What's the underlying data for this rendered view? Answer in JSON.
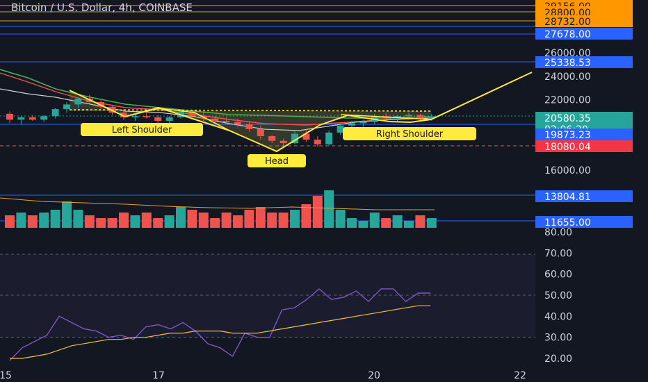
{
  "header": {
    "title": "Bitcoin / U.S. Dollar, 4h, COINBASE"
  },
  "colors": {
    "bg": "#131722",
    "up": "#26a69a",
    "down": "#ef5350",
    "pattern": "#ffeb3b",
    "axis_text": "#d1d4dc",
    "rsi": "#7e57c2",
    "rsi_ma": "#f0c040"
  },
  "chart_data": [
    {
      "type": "candlestick",
      "title": "Bitcoin / U.S. Dollar, 4h, COINBASE",
      "x_ticks": [
        "15",
        "17",
        "20",
        "22"
      ],
      "y_ticks": [
        16000,
        18000,
        20000,
        22000,
        24000,
        26000
      ],
      "ylim": [
        15000,
        30000
      ],
      "price_labels": [
        {
          "value": "29156.00",
          "kind": "level"
        },
        {
          "value": "28800.00",
          "kind": "level"
        },
        {
          "value": "28732.00",
          "kind": "level"
        },
        {
          "value": "27678.00",
          "kind": "blue"
        },
        {
          "value": "25338.53",
          "kind": "blue"
        },
        {
          "value": "20580.35",
          "kind": "last"
        },
        {
          "value": "02:06:20",
          "kind": "countdown"
        },
        {
          "value": "19873.23",
          "kind": "blue"
        },
        {
          "value": "18080.04",
          "kind": "red"
        }
      ],
      "candles": [
        {
          "o": 20800,
          "h": 21000,
          "l": 20000,
          "c": 20300
        },
        {
          "o": 20300,
          "h": 20600,
          "l": 19900,
          "c": 20500
        },
        {
          "o": 20500,
          "h": 20700,
          "l": 20200,
          "c": 20300
        },
        {
          "o": 20300,
          "h": 20700,
          "l": 20100,
          "c": 20600
        },
        {
          "o": 20600,
          "h": 21300,
          "l": 20400,
          "c": 21200
        },
        {
          "o": 21200,
          "h": 21800,
          "l": 20900,
          "c": 21600
        },
        {
          "o": 21600,
          "h": 22200,
          "l": 21300,
          "c": 22100
        },
        {
          "o": 22100,
          "h": 22400,
          "l": 21700,
          "c": 21800
        },
        {
          "o": 21800,
          "h": 22000,
          "l": 21200,
          "c": 21400
        },
        {
          "o": 21400,
          "h": 21500,
          "l": 20700,
          "c": 20900
        },
        {
          "o": 20900,
          "h": 21200,
          "l": 20300,
          "c": 20500
        },
        {
          "o": 20500,
          "h": 20800,
          "l": 20200,
          "c": 20600
        },
        {
          "o": 20600,
          "h": 21000,
          "l": 20400,
          "c": 20500
        },
        {
          "o": 20500,
          "h": 20700,
          "l": 20000,
          "c": 20200
        },
        {
          "o": 20200,
          "h": 20600,
          "l": 19900,
          "c": 20500
        },
        {
          "o": 20500,
          "h": 21200,
          "l": 20400,
          "c": 21000
        },
        {
          "o": 21000,
          "h": 21100,
          "l": 20500,
          "c": 20600
        },
        {
          "o": 20600,
          "h": 20900,
          "l": 20200,
          "c": 20400
        },
        {
          "o": 20400,
          "h": 20600,
          "l": 20000,
          "c": 20200
        },
        {
          "o": 20200,
          "h": 20500,
          "l": 19900,
          "c": 20100
        },
        {
          "o": 20100,
          "h": 20400,
          "l": 19700,
          "c": 19900
        },
        {
          "o": 19900,
          "h": 20100,
          "l": 19300,
          "c": 19500
        },
        {
          "o": 19500,
          "h": 19800,
          "l": 18600,
          "c": 18900
        },
        {
          "o": 18900,
          "h": 19000,
          "l": 18300,
          "c": 18500
        },
        {
          "o": 18500,
          "h": 18700,
          "l": 17900,
          "c": 18300
        },
        {
          "o": 18300,
          "h": 19300,
          "l": 18200,
          "c": 19100
        },
        {
          "o": 19100,
          "h": 19500,
          "l": 18400,
          "c": 18600
        },
        {
          "o": 18600,
          "h": 18900,
          "l": 18000,
          "c": 18200
        },
        {
          "o": 18200,
          "h": 19400,
          "l": 18100,
          "c": 19200
        },
        {
          "o": 19200,
          "h": 20000,
          "l": 19000,
          "c": 19800
        },
        {
          "o": 19800,
          "h": 20200,
          "l": 19500,
          "c": 20000
        },
        {
          "o": 20000,
          "h": 20300,
          "l": 19700,
          "c": 20100
        },
        {
          "o": 20100,
          "h": 20800,
          "l": 19900,
          "c": 20600
        },
        {
          "o": 20600,
          "h": 20900,
          "l": 20200,
          "c": 20400
        },
        {
          "o": 20400,
          "h": 20700,
          "l": 20200,
          "c": 20600
        },
        {
          "o": 20600,
          "h": 20900,
          "l": 20400,
          "c": 20700
        },
        {
          "o": 20700,
          "h": 20800,
          "l": 20200,
          "c": 20400
        },
        {
          "o": 20400,
          "h": 20800,
          "l": 20200,
          "c": 20580
        }
      ],
      "volume": [
        11,
        12,
        11,
        12,
        13,
        16,
        13,
        11,
        10,
        10,
        12,
        11,
        12,
        10,
        11,
        14,
        13,
        12,
        10,
        12,
        11,
        13,
        14,
        12,
        12,
        13,
        15,
        18,
        20,
        13,
        10,
        9,
        12,
        10,
        11,
        9,
        11,
        10
      ]
    },
    {
      "type": "line",
      "name": "RSI",
      "y_ticks": [
        20,
        30,
        40,
        50,
        60,
        70,
        80
      ],
      "ylim": [
        17,
        82
      ],
      "series": [
        {
          "values": [
            19,
            25,
            28,
            31,
            40,
            37,
            34,
            33,
            30,
            31,
            29,
            35,
            36,
            34,
            37,
            33,
            27,
            25,
            21,
            32,
            30,
            30,
            43,
            44,
            48,
            53,
            48,
            49,
            52,
            47,
            53,
            53,
            47,
            51,
            51
          ]
        },
        {
          "values": [
            20,
            20,
            21,
            22,
            24,
            26,
            27,
            28,
            29,
            29,
            30,
            30,
            31,
            32,
            32,
            33,
            33,
            33,
            32,
            32,
            32,
            33,
            34,
            35,
            36,
            37,
            38,
            39,
            40,
            41,
            42,
            43,
            44,
            45,
            45
          ]
        }
      ]
    }
  ],
  "annotations": {
    "left_shoulder": "Left Shoulder",
    "head": "Head",
    "right_shoulder": "Right Shoulder"
  },
  "rsi_axis": [
    "80.00",
    "70.00",
    "60.00",
    "50.00",
    "40.00",
    "30.00",
    "20.00"
  ],
  "volume_axis": [
    "13804.81",
    "11655.00"
  ]
}
